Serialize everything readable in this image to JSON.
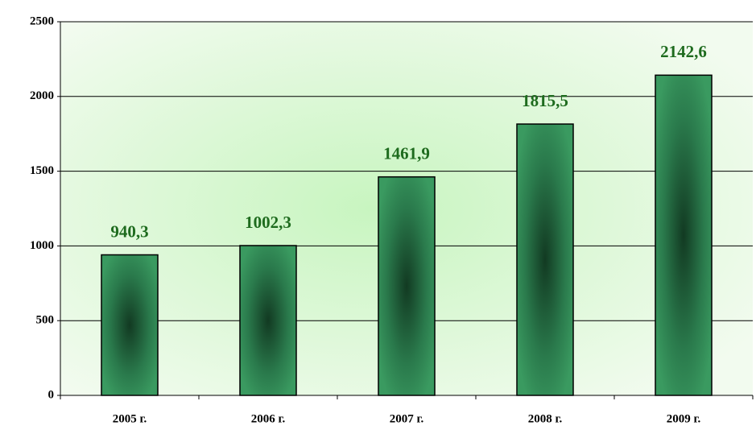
{
  "chart_data": {
    "type": "bar",
    "categories": [
      "2005 г.",
      "2006 г.",
      "2007 г.",
      "2008 г.",
      "2009 г."
    ],
    "values": [
      940.3,
      1002.3,
      1461.9,
      1815.5,
      2142.6
    ],
    "value_labels": [
      "940,3",
      "1002,3",
      "1461,9",
      "1815,5",
      "2142,6"
    ],
    "color": "#2e8b57",
    "ylim": [
      0,
      2500
    ],
    "yticks": [
      0,
      500,
      1000,
      1500,
      2000,
      2500
    ],
    "grid": true
  }
}
